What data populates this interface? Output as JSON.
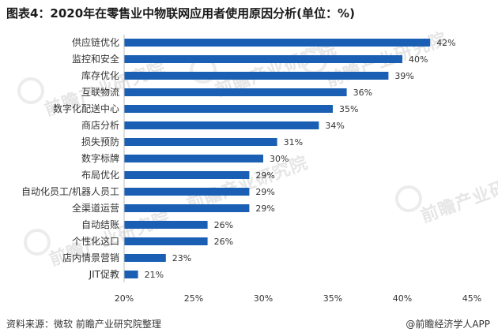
{
  "header": {
    "title": "图表4：2020年在零售业中物联网应用者使用原因分析(单位：%)"
  },
  "footer": {
    "source": "资料来源：微软 前瞻产业研究院整理",
    "brand": "@前瞻经济学人APP"
  },
  "watermark": {
    "text": "前瞻产业研究院"
  },
  "colors": {
    "bar": "#1a5fb4",
    "axis": "#bfbfbf"
  },
  "chart_data": {
    "type": "bar",
    "orientation": "horizontal",
    "title": "图表4：2020年在零售业中物联网应用者使用原因分析(单位：%)",
    "categories": [
      "供应链优化",
      "监控和安全",
      "库存优化",
      "互联物流",
      "数字化配送中心",
      "商店分析",
      "损失预防",
      "数字标牌",
      "布局优化",
      "自动化员工/机器人员工",
      "全渠道运营",
      "自动结账",
      "个性化这口",
      "店内情景营销",
      "JIT促教"
    ],
    "values": [
      42,
      40,
      39,
      36,
      35,
      34,
      31,
      30,
      29,
      29,
      29,
      26,
      26,
      23,
      21
    ],
    "value_labels": [
      "42%",
      "40%",
      "39%",
      "36%",
      "35%",
      "34%",
      "31%",
      "30%",
      "29%",
      "29%",
      "29%",
      "26%",
      "26%",
      "23%",
      "21%"
    ],
    "xlim": [
      20,
      45
    ],
    "xticks": [
      20,
      25,
      30,
      35,
      40,
      45
    ],
    "xtick_labels": [
      "20%",
      "25%",
      "30%",
      "35%",
      "40%",
      "45%"
    ],
    "grid": false,
    "legend": "none"
  }
}
